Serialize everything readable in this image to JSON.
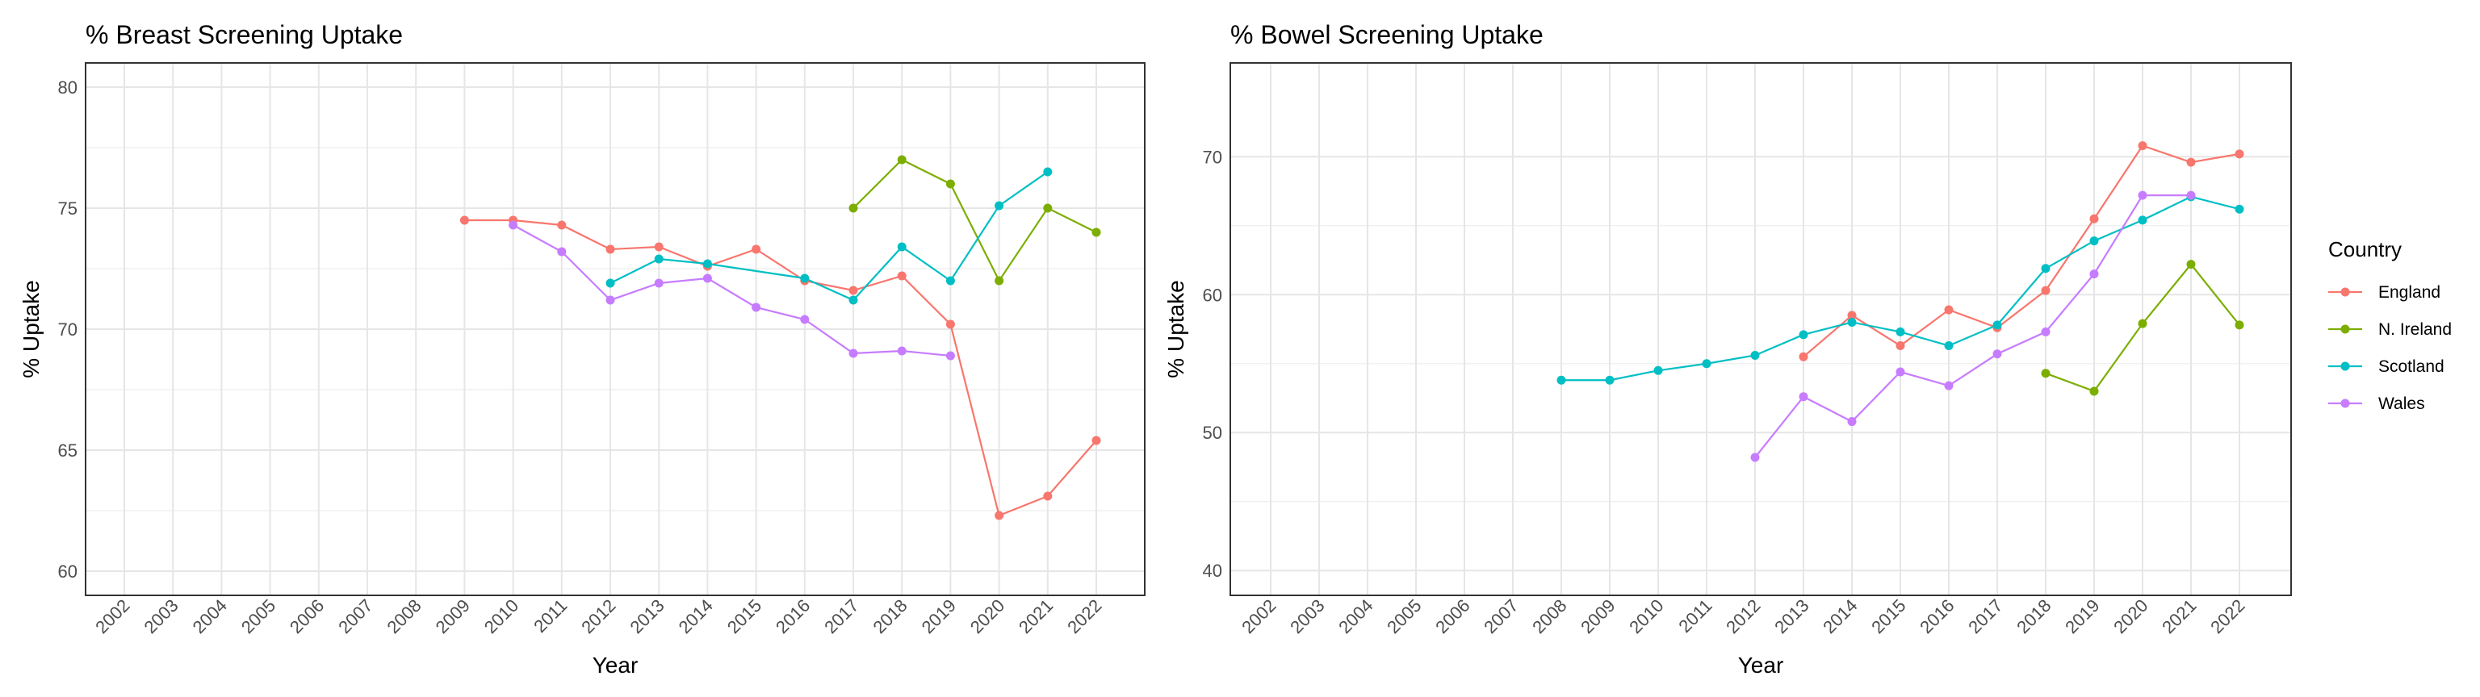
{
  "chart_data": [
    {
      "type": "line",
      "title": "% Breast Screening Uptake",
      "xlabel": "Year",
      "ylabel": "% Uptake",
      "ylim": [
        59,
        81
      ],
      "yticks": [
        60,
        65,
        70,
        75,
        80
      ],
      "x": [
        "2002",
        "2003",
        "2004",
        "2005",
        "2006",
        "2007",
        "2008",
        "2009",
        "2010",
        "2011",
        "2012",
        "2013",
        "2014",
        "2015",
        "2016",
        "2017",
        "2018",
        "2019",
        "2020",
        "2021",
        "2022"
      ],
      "grid": true,
      "series": [
        {
          "name": "England",
          "color": "#F8766D",
          "values": [
            null,
            null,
            null,
            null,
            null,
            null,
            null,
            74.5,
            74.5,
            74.3,
            73.3,
            73.4,
            72.6,
            73.3,
            72.0,
            71.6,
            72.2,
            70.2,
            62.3,
            63.1,
            65.4
          ]
        },
        {
          "name": "N. Ireland",
          "color": "#7CAE00",
          "values": [
            null,
            null,
            null,
            null,
            null,
            null,
            null,
            null,
            null,
            null,
            null,
            null,
            null,
            null,
            null,
            75.0,
            77.0,
            76.0,
            72.0,
            75.0,
            74.0
          ]
        },
        {
          "name": "Scotland",
          "color": "#00BFC4",
          "values": [
            null,
            null,
            null,
            null,
            null,
            null,
            null,
            null,
            null,
            null,
            71.9,
            72.9,
            72.7,
            null,
            72.1,
            71.2,
            73.4,
            72.0,
            75.1,
            76.5,
            null
          ]
        },
        {
          "name": "Wales",
          "color": "#C77CFF",
          "values": [
            null,
            null,
            null,
            null,
            null,
            null,
            null,
            null,
            74.3,
            73.2,
            71.2,
            71.9,
            72.1,
            70.9,
            70.4,
            69.0,
            69.1,
            68.9,
            null,
            null,
            null
          ]
        }
      ]
    },
    {
      "type": "line",
      "title": "% Bowel Screening Uptake",
      "xlabel": "Year",
      "ylabel": "% Uptake",
      "ylim": [
        38.2,
        76.8
      ],
      "yticks": [
        40,
        50,
        60,
        70
      ],
      "x": [
        "2002",
        "2003",
        "2004",
        "2005",
        "2006",
        "2007",
        "2008",
        "2009",
        "2010",
        "2011",
        "2012",
        "2013",
        "2014",
        "2015",
        "2016",
        "2017",
        "2018",
        "2019",
        "2020",
        "2021",
        "2022"
      ],
      "grid": true,
      "legend": {
        "title": "Country",
        "position": "right"
      },
      "series": [
        {
          "name": "England",
          "color": "#F8766D",
          "values": [
            null,
            null,
            null,
            null,
            null,
            null,
            null,
            null,
            null,
            null,
            null,
            55.5,
            58.5,
            56.3,
            58.9,
            57.6,
            60.3,
            65.5,
            70.8,
            69.6,
            70.2
          ]
        },
        {
          "name": "N. Ireland",
          "color": "#7CAE00",
          "values": [
            null,
            null,
            null,
            null,
            null,
            null,
            null,
            null,
            null,
            null,
            null,
            null,
            null,
            null,
            null,
            null,
            54.3,
            53.0,
            57.9,
            62.2,
            57.8
          ]
        },
        {
          "name": "Scotland",
          "color": "#00BFC4",
          "values": [
            null,
            null,
            null,
            null,
            null,
            null,
            53.8,
            53.8,
            54.5,
            55.0,
            55.6,
            57.1,
            58.0,
            57.3,
            56.3,
            57.8,
            61.9,
            63.9,
            65.4,
            67.1,
            66.2
          ]
        },
        {
          "name": "Wales",
          "color": "#C77CFF",
          "values": [
            null,
            null,
            null,
            null,
            null,
            null,
            null,
            null,
            null,
            null,
            48.2,
            52.6,
            50.8,
            54.4,
            53.4,
            55.7,
            57.3,
            61.5,
            67.2,
            67.2,
            null
          ]
        }
      ]
    }
  ]
}
